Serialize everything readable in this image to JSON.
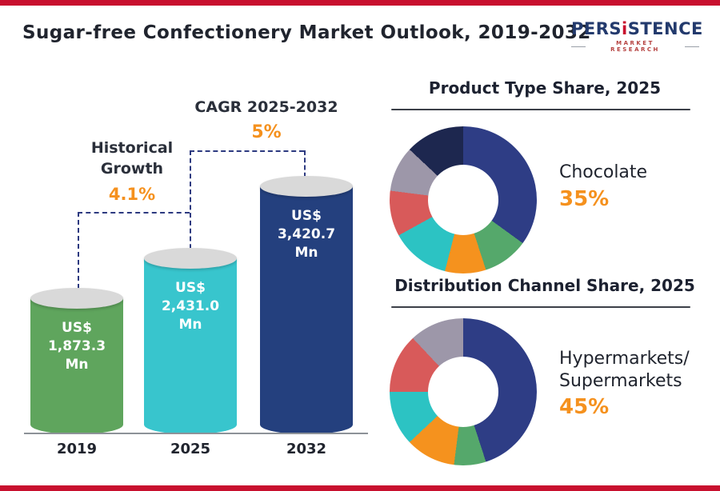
{
  "page": {
    "title": "Sugar-free Confectionery Market Outlook, 2019-2032",
    "logo": {
      "name_part1": "PERS",
      "name_part2": "i",
      "name_part3": "STENCE",
      "subtitle": "MARKET RESEARCH"
    }
  },
  "chart_data": [
    {
      "type": "bar",
      "title": "Sugar-free Confectionery Market Outlook, 2019-2032",
      "categories": [
        "2019",
        "2025",
        "2032"
      ],
      "values": [
        1873.3,
        2431.0,
        3420.7
      ],
      "unit": "US$ Mn",
      "bar_labels": [
        "US$\n1,873.3\nMn",
        "US$\n2,431.0\nMn",
        "US$\n3,420.7\nMn"
      ],
      "bar_colors": [
        "#5fa55d",
        "#38c5cd",
        "#24407e"
      ],
      "ylim": [
        0,
        3420.7
      ],
      "annotations": {
        "historical_label": "Historical\nGrowth",
        "historical_value": "4.1%",
        "cagr_label": "CAGR 2025-2032",
        "cagr_value": "5%"
      }
    },
    {
      "type": "pie",
      "title": "Product Type Share, 2025",
      "highlight_label": "Chocolate",
      "highlight_value": "35%",
      "legend_position": "right",
      "segments": [
        {
          "name": "Chocolate",
          "value": 35,
          "color": "#2e3d85"
        },
        {
          "value": 10,
          "color": "#55a86b"
        },
        {
          "value": 9,
          "color": "#f5921e"
        },
        {
          "value": 13,
          "color": "#2cc3c3"
        },
        {
          "value": 10,
          "color": "#d85a5a"
        },
        {
          "value": 10,
          "color": "#9d97a9"
        },
        {
          "value": 13,
          "color": "#1d274f"
        }
      ]
    },
    {
      "type": "pie",
      "title": "Distribution Channel Share, 2025",
      "highlight_label": "Hypermarkets/\nSupermarkets",
      "highlight_value": "45%",
      "legend_position": "right",
      "segments": [
        {
          "name": "Hypermarkets/Supermarkets",
          "value": 45,
          "color": "#2e3d85"
        },
        {
          "value": 7,
          "color": "#55a86b"
        },
        {
          "value": 11,
          "color": "#f5921e"
        },
        {
          "value": 12,
          "color": "#2cc3c3"
        },
        {
          "value": 13,
          "color": "#d85a5a"
        },
        {
          "value": 12,
          "color": "#9d97a9"
        }
      ]
    }
  ]
}
